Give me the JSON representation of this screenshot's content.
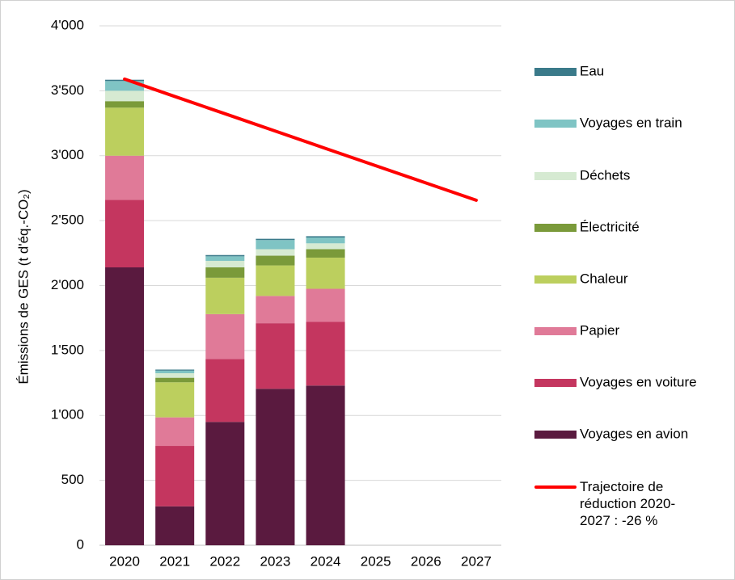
{
  "chart_data": {
    "type": "bar",
    "stacked": true,
    "y_label": "Émissions de GES (t d'éq.-CO₂)",
    "categories": [
      "2020",
      "2021",
      "2022",
      "2023",
      "2024",
      "2025",
      "2026",
      "2027"
    ],
    "series": [
      {
        "name": "Voyages en avion",
        "color": "#5a1a3f",
        "values": [
          2140,
          300,
          950,
          1205,
          1230,
          null,
          null,
          null
        ]
      },
      {
        "name": "Voyages en voiture",
        "color": "#c4365f",
        "values": [
          520,
          465,
          485,
          505,
          490,
          null,
          null,
          null
        ]
      },
      {
        "name": "Papier",
        "color": "#e07a98",
        "values": [
          340,
          220,
          345,
          210,
          255,
          null,
          null,
          null
        ]
      },
      {
        "name": "Chaleur",
        "color": "#bccf5e",
        "values": [
          370,
          270,
          280,
          235,
          240,
          null,
          null,
          null
        ]
      },
      {
        "name": "Électricité",
        "color": "#7a9a3a",
        "values": [
          50,
          35,
          80,
          75,
          65,
          null,
          null,
          null
        ]
      },
      {
        "name": "Déchets",
        "color": "#d6ead2",
        "values": [
          80,
          35,
          50,
          50,
          45,
          null,
          null,
          null
        ]
      },
      {
        "name": "Voyages en train",
        "color": "#7fc4c4",
        "values": [
          75,
          20,
          35,
          70,
          45,
          null,
          null,
          null
        ]
      },
      {
        "name": "Eau",
        "color": "#3a7a8a",
        "values": [
          10,
          8,
          10,
          10,
          10,
          null,
          null,
          null
        ]
      }
    ],
    "line": {
      "name": "Trajectoire de réduction 2020-2027 : -26 %",
      "color": "#ff0000",
      "values": [
        3590,
        3456,
        3323,
        3190,
        3056,
        2923,
        2790,
        2657
      ]
    },
    "ylim": [
      0,
      4000
    ],
    "yticks": [
      0,
      500,
      {
        "value": 1000,
        "label": "1'000"
      },
      {
        "value": 1500,
        "label": "1'500"
      },
      {
        "value": 2000,
        "label": "2'000"
      },
      {
        "value": 2500,
        "label": "2'500"
      },
      {
        "value": 3000,
        "label": "3'000"
      },
      {
        "value": 3500,
        "label": "3'500"
      },
      {
        "value": 4000,
        "label": "4'000"
      }
    ],
    "grid": true,
    "legend": "right"
  }
}
